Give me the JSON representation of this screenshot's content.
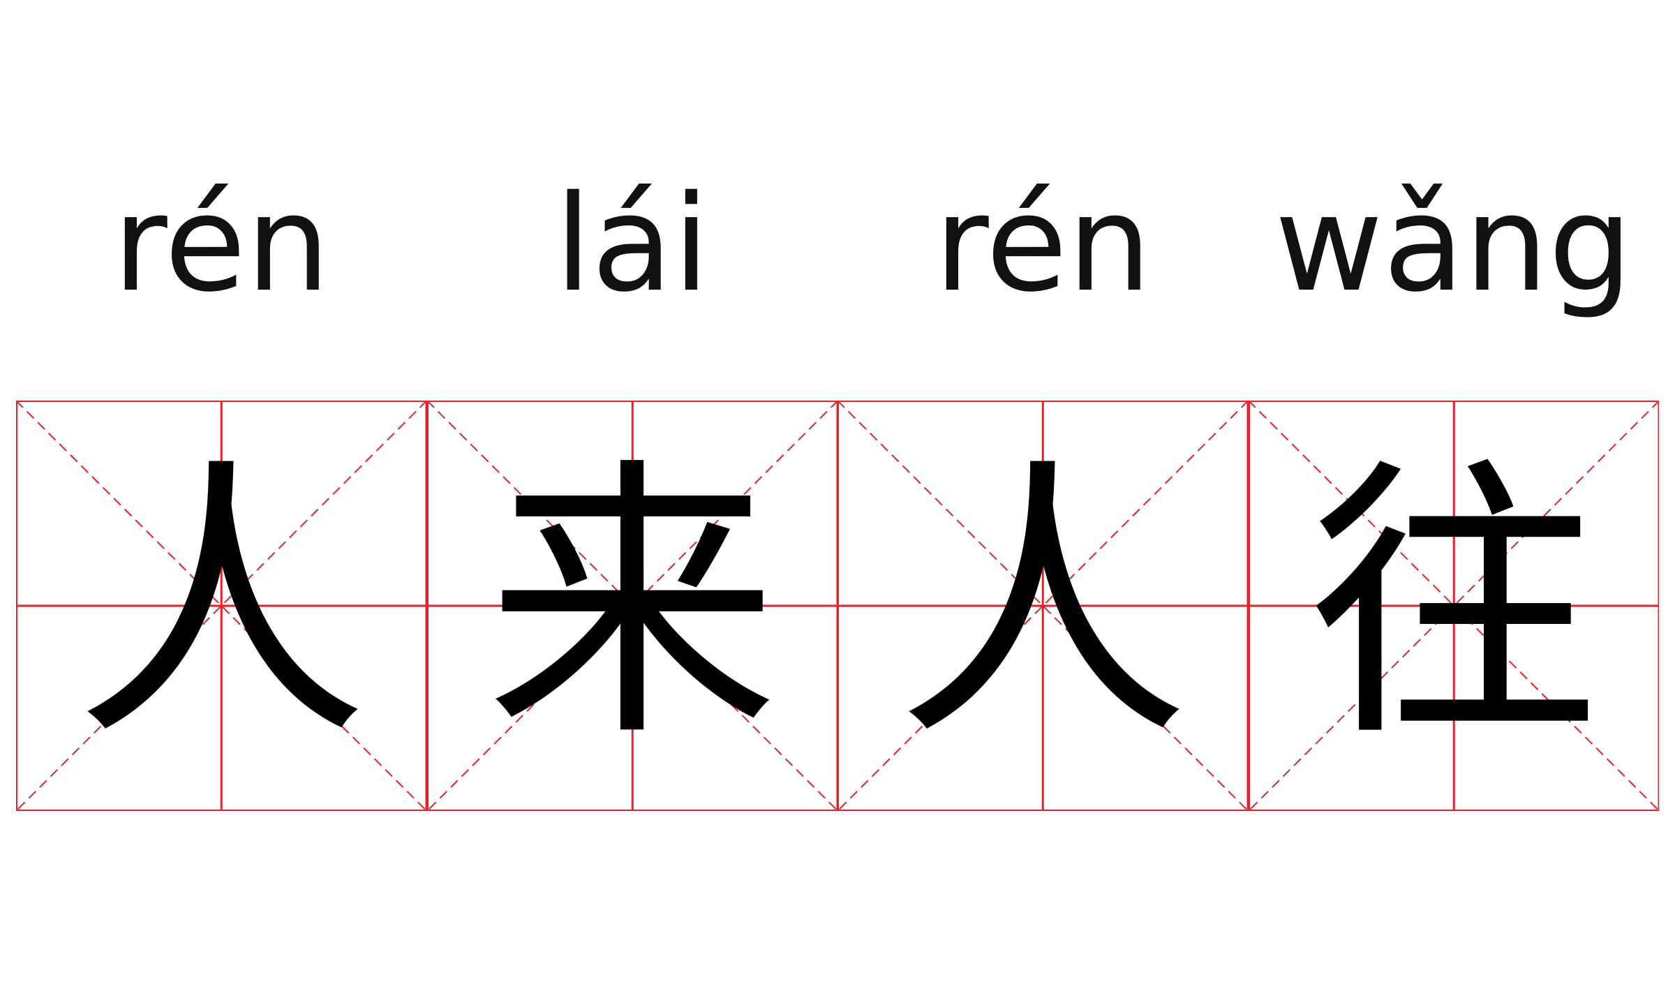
{
  "pinyin": [
    "rén",
    "lái",
    "rén",
    "wǎng"
  ],
  "characters": [
    "人",
    "来",
    "人",
    "往"
  ],
  "colors": {
    "grid": "#e8202a",
    "text": "#000000"
  }
}
